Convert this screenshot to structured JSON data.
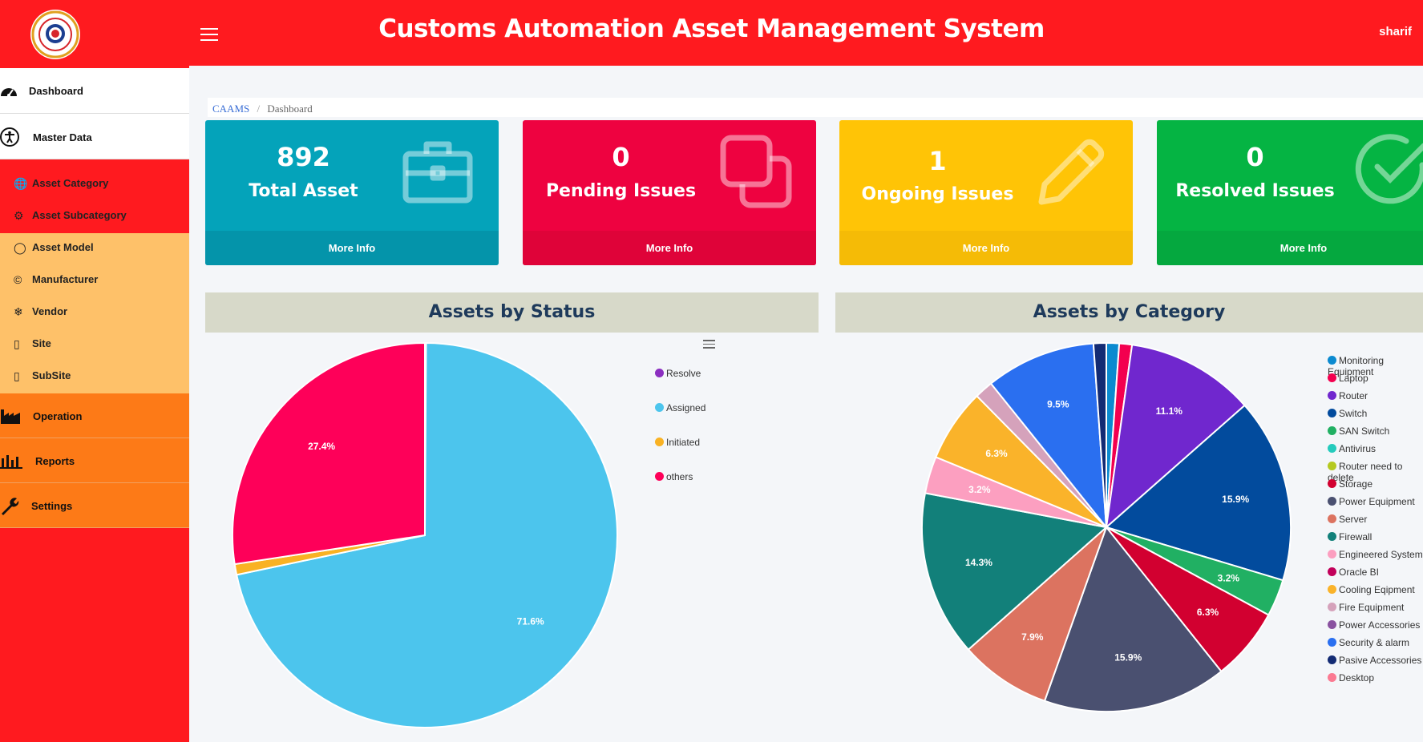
{
  "header": {
    "title": "Customs Automation Asset Management System",
    "user": "sharif"
  },
  "sidebar": {
    "dashboard": "Dashboard",
    "master_data": "Master Data",
    "sub_items": [
      "Asset Category",
      "Asset Subcategory",
      "Asset Model",
      "Manufacturer",
      "Vendor",
      "Site",
      "SubSite"
    ],
    "operation": "Operation",
    "reports": "Reports",
    "settings": "Settings"
  },
  "breadcrumb": {
    "root": "CAAMS",
    "separator": "/",
    "current": "Dashboard"
  },
  "cards": [
    {
      "value": "892",
      "label": "Total Asset",
      "footer": "More Info",
      "color": "#04a3ba",
      "footer_color": "#0494aa",
      "icon": "briefcase-icon"
    },
    {
      "value": "0",
      "label": "Pending Issues",
      "footer": "More Info",
      "color": "#ee0240",
      "footer_color": "#df0339",
      "icon": "copy-icon"
    },
    {
      "value": "1",
      "label": "Ongoing Issues",
      "footer": "More Info",
      "color": "#ffc406",
      "footer_color": "#f5bb06",
      "icon": "pencil-icon"
    },
    {
      "value": "0",
      "label": "Resolved Issues",
      "footer": "More Info",
      "color": "#05b443",
      "footer_color": "#05a83f",
      "icon": "check-circle-icon"
    }
  ],
  "chart_data": [
    {
      "type": "pie",
      "title": "Assets by Status",
      "slices": [
        {
          "name": "Resolve",
          "value": 0.1,
          "color": "#8b2fc0",
          "label": ""
        },
        {
          "name": "Assigned",
          "value": 71.6,
          "color": "#4cc5ed",
          "label": "71.6%"
        },
        {
          "name": "Initiated",
          "value": 0.9,
          "color": "#f9b224",
          "label": ""
        },
        {
          "name": "others",
          "value": 27.4,
          "color": "#fe0059",
          "label": "27.4%"
        }
      ],
      "legend_position": "right"
    },
    {
      "type": "pie",
      "title": "Assets by Category",
      "slices": [
        {
          "name": "Monitoring Equipment",
          "value": 1.1,
          "color": "#0b8ad0",
          "label": ""
        },
        {
          "name": "Laptop",
          "value": 1.1,
          "color": "#f3004f",
          "label": ""
        },
        {
          "name": "Router",
          "value": 11.1,
          "color": "#7027ce",
          "label": "11.1%"
        },
        {
          "name": "Switch",
          "value": 15.9,
          "color": "#024b9d",
          "label": "15.9%"
        },
        {
          "name": "SAN Switch",
          "value": 3.2,
          "color": "#21b063",
          "label": "3.2%"
        },
        {
          "name": "Antivirus",
          "value": 0,
          "color": "#25cbbd",
          "label": ""
        },
        {
          "name": "Router need to delete",
          "value": 0,
          "color": "#b5c920",
          "label": ""
        },
        {
          "name": "Storage",
          "value": 6.3,
          "color": "#d20030",
          "label": "6.3%"
        },
        {
          "name": "Power Equipment",
          "value": 15.9,
          "color": "#4a5070",
          "label": "15.9%"
        },
        {
          "name": "Server",
          "value": 7.9,
          "color": "#dc7360",
          "label": "7.9%"
        },
        {
          "name": "Firewall",
          "value": 14.3,
          "color": "#12807a",
          "label": "14.3%"
        },
        {
          "name": "Engineered System",
          "value": 3.2,
          "color": "#fc9fc0",
          "label": "3.2%"
        },
        {
          "name": "Oracle BI",
          "value": 0,
          "color": "#c2005a",
          "label": ""
        },
        {
          "name": "Cooling Eqipment",
          "value": 6.3,
          "color": "#fab32a",
          "label": "6.3%"
        },
        {
          "name": "Fire Equipment",
          "value": 1.6,
          "color": "#d5a2bb",
          "label": ""
        },
        {
          "name": "Power Accessories",
          "value": 0,
          "color": "#8a52a0",
          "label": ""
        },
        {
          "name": "Security & alarm",
          "value": 9.5,
          "color": "#2a6ff0",
          "label": "9.5%"
        },
        {
          "name": "Pasive Accessories",
          "value": 1.1,
          "color": "#132b74",
          "label": ""
        },
        {
          "name": "Desktop",
          "value": 0,
          "color": "#fb7a92",
          "label": ""
        }
      ],
      "legend_position": "right"
    }
  ]
}
